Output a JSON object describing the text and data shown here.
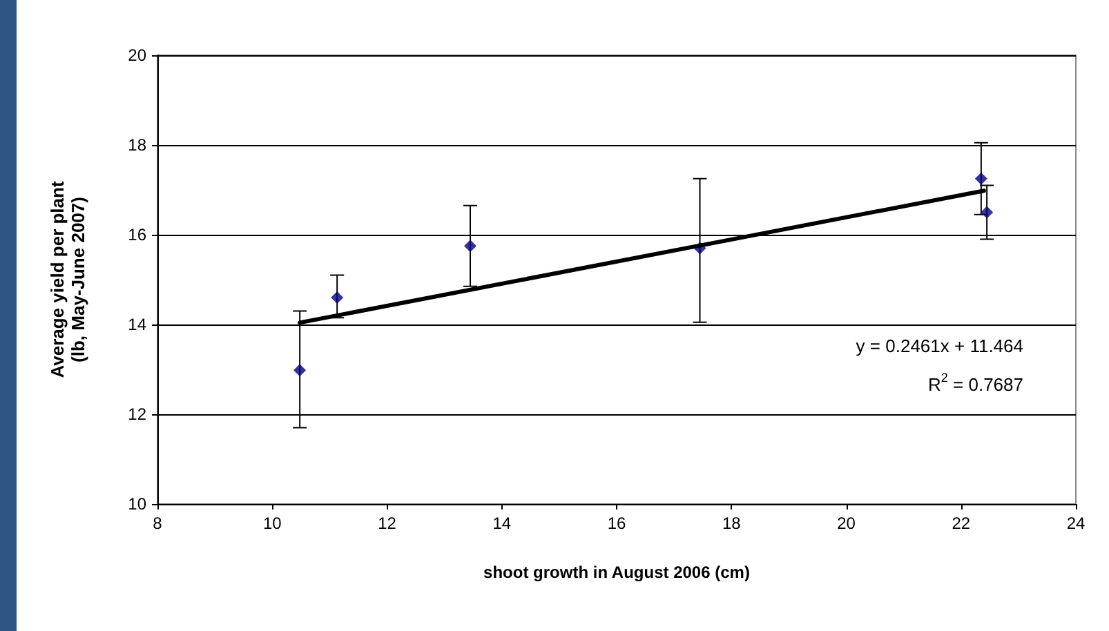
{
  "chart_data": {
    "type": "scatter",
    "xlabel": "shoot growth in August 2006 (cm)",
    "ylabel": "Average yield per plant\n(lb, May-June 2007)",
    "xlim": [
      8,
      24
    ],
    "xticks": [
      8,
      10,
      12,
      14,
      16,
      18,
      20,
      22,
      24
    ],
    "ylim": [
      10,
      20
    ],
    "yticks": [
      10,
      12,
      14,
      16,
      18,
      20
    ],
    "grid": "y",
    "marker": "diamond",
    "series": [
      {
        "color": "#000080",
        "x": [
          10.48,
          11.13,
          13.45,
          17.45,
          22.35,
          22.45
        ],
        "values": [
          12.98,
          14.6,
          15.75,
          15.7,
          17.25,
          16.5
        ],
        "errors": [
          [
            11.7,
            14.3
          ],
          [
            14.15,
            15.1
          ],
          [
            14.85,
            16.65
          ],
          [
            14.05,
            17.25
          ],
          [
            16.45,
            18.05
          ],
          [
            15.9,
            17.1
          ]
        ]
      },
      {
        "type": "line",
        "color": "#000000",
        "marker": "none",
        "line_style": "solid",
        "x": [
          10.48,
          22.4
        ],
        "values": [
          14.04,
          16.98
        ]
      }
    ],
    "annotations": [
      "y = 0.2461x + 11.464",
      "R$^{2}$ = 0.7687"
    ]
  }
}
